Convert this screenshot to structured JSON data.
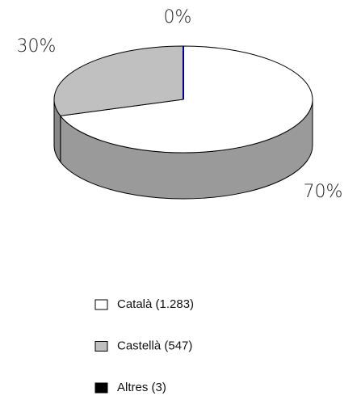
{
  "chart_data": {
    "type": "pie",
    "categories": [
      "Català (1.283)",
      "Castellà (547)",
      "Altres (3)"
    ],
    "values": [
      70,
      30,
      0
    ],
    "value_labels": [
      "70%",
      "30%",
      "0%"
    ],
    "colors": [
      "#ffffff",
      "#c0c0c0",
      "#000080"
    ],
    "legend": "bottom"
  }
}
